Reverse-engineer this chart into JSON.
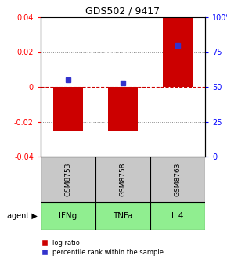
{
  "title": "GDS502 / 9417",
  "samples": [
    "GSM8753",
    "GSM8758",
    "GSM8763"
  ],
  "agents": [
    "IFNg",
    "TNFa",
    "IL4"
  ],
  "log_ratios": [
    -0.025,
    -0.025,
    0.04
  ],
  "percentile_ranks": [
    55,
    53,
    80
  ],
  "ylim": [
    -0.04,
    0.04
  ],
  "yticks_left": [
    -0.04,
    -0.02,
    0.0,
    0.02,
    0.04
  ],
  "yticks_right": [
    0,
    25,
    50,
    75,
    100
  ],
  "bar_color": "#cc0000",
  "dot_color": "#3333cc",
  "agent_bg_color": "#90ee90",
  "sample_bg_color": "#c8c8c8",
  "zero_line_color": "#cc0000",
  "grid_color": "#888888",
  "bar_width": 0.55,
  "legend_items": [
    "log ratio",
    "percentile rank within the sample"
  ]
}
